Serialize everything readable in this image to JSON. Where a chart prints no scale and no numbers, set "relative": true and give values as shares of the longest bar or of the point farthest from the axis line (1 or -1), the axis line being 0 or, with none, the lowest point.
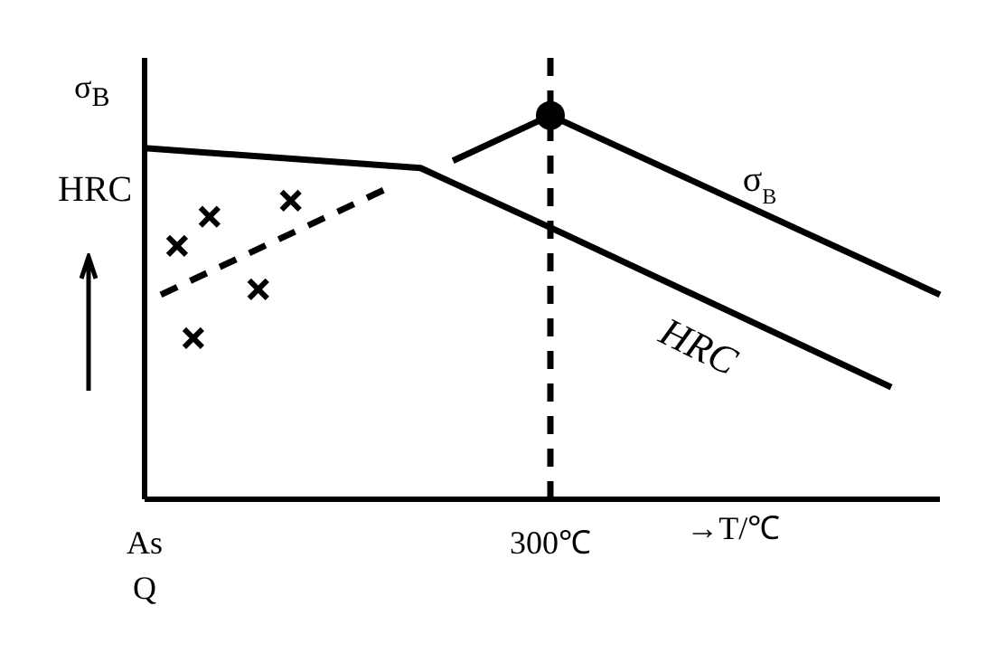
{
  "chart_data": {
    "type": "line",
    "relative": true,
    "ylabel": "HRC",
    "xlabel": "→T/℃",
    "annotations": [
      "σ$_{B}$"
    ],
    "categories": [
      "As\nQ",
      null,
      null,
      null,
      null,
      null,
      null,
      null,
      null,
      null,
      null,
      null,
      null,
      null,
      null,
      null,
      null,
      null,
      null,
      null,
      null,
      null,
      null,
      null,
      null,
      "300℃",
      null,
      null,
      null,
      null,
      null,
      null,
      null,
      null,
      null,
      null,
      null,
      null,
      null,
      null,
      null,
      null,
      null,
      null,
      null,
      null,
      null,
      null,
      null,
      null
    ],
    "ref_lines": [
      {
        "axis": "x",
        "value": "300℃",
        "color": "#000000",
        "line_style": "dashed"
      }
    ],
    "grid": false,
    "legend": false,
    "series": [
      {
        "name": "HRC",
        "color": "#000000",
        "line_style": "solid",
        "marker": "none",
        "values": [
          0.915,
          null,
          null,
          null,
          null,
          null,
          null,
          null,
          null,
          null,
          null,
          null,
          null,
          null,
          null,
          null,
          null,
          0.863,
          null,
          null,
          null,
          null,
          null,
          null,
          null,
          0.708,
          null,
          null,
          null,
          null,
          null,
          null,
          null,
          null,
          null,
          null,
          null,
          null,
          null,
          null,
          null,
          null,
          null,
          null,
          null,
          null,
          0.292,
          null,
          null,
          null
        ]
      },
      {
        "name": "σ$_{B}$",
        "color": "#000000",
        "line_style": "solid",
        "marker": "none",
        "values": [
          null,
          null,
          null,
          null,
          null,
          null,
          null,
          null,
          null,
          null,
          null,
          null,
          null,
          null,
          null,
          null,
          null,
          null,
          null,
          0.882,
          null,
          null,
          null,
          null,
          null,
          1,
          null,
          null,
          null,
          null,
          null,
          null,
          null,
          null,
          null,
          null,
          null,
          null,
          null,
          null,
          null,
          null,
          null,
          null,
          null,
          null,
          null,
          null,
          null,
          0.533
        ]
      },
      {
        "color": "#000000",
        "line_style": "dashed",
        "marker": "none",
        "values": [
          null,
          0.533,
          null,
          null,
          null,
          null,
          null,
          null,
          null,
          null,
          null,
          null,
          null,
          null,
          null,
          0.811,
          null,
          null,
          null,
          null,
          null,
          null,
          null,
          null,
          null,
          null,
          null,
          null,
          null,
          null,
          null,
          null,
          null,
          null,
          null,
          null,
          null,
          null,
          null,
          null,
          null,
          null,
          null,
          null,
          null,
          null,
          null,
          null,
          null,
          null
        ]
      },
      {
        "type": "scatter",
        "color": "#000000",
        "marker": "cross",
        "values": [
          null,
          null,
          0.66,
          0.42,
          0.736,
          null,
          null,
          0.547,
          null,
          0.778,
          null,
          null,
          null,
          null,
          null,
          null,
          null,
          null,
          null,
          null,
          null,
          null,
          null,
          null,
          null,
          null,
          null,
          null,
          null,
          null,
          null,
          null,
          null,
          null,
          null,
          null,
          null,
          null,
          null,
          null,
          null,
          null,
          null,
          null,
          null,
          null,
          null,
          null,
          null,
          null
        ]
      },
      {
        "type": "scatter",
        "color": "#000000",
        "marker": "circle",
        "values": [
          null,
          null,
          null,
          null,
          null,
          null,
          null,
          null,
          null,
          null,
          null,
          null,
          null,
          null,
          null,
          null,
          null,
          null,
          null,
          null,
          null,
          null,
          null,
          null,
          null,
          1,
          null,
          null,
          null,
          null,
          null,
          null,
          null,
          null,
          null,
          null,
          null,
          null,
          null,
          null,
          null,
          null,
          null,
          null,
          null,
          null,
          null,
          null,
          null,
          null
        ]
      }
    ]
  }
}
